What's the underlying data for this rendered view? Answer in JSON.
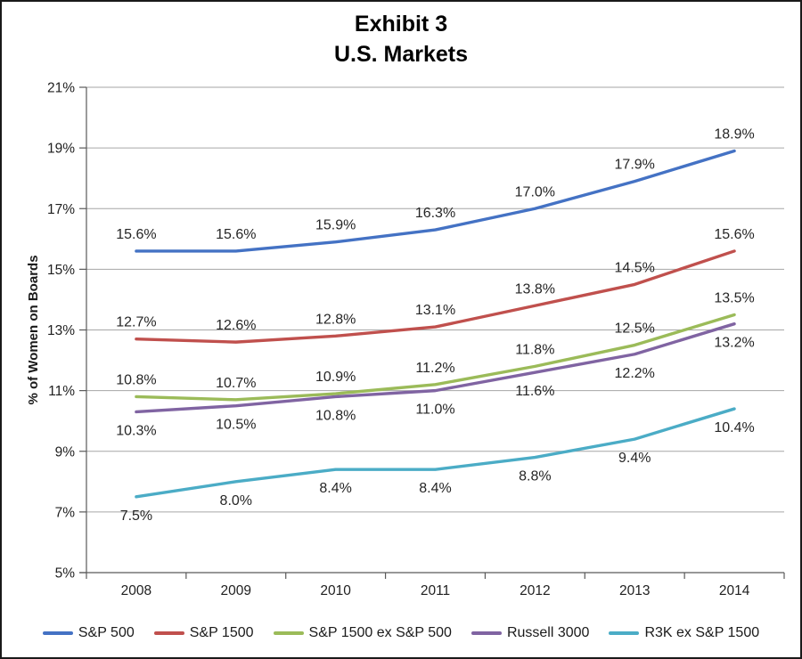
{
  "chart_data": {
    "type": "line",
    "title": "Exhibit 3",
    "subtitle": "U.S. Markets",
    "ylabel": "% of Women on Boards",
    "ylim": [
      5,
      21
    ],
    "ytick_step": 2,
    "ytick_labels": [
      "5%",
      "7%",
      "9%",
      "11%",
      "13%",
      "15%",
      "17%",
      "19%",
      "21%"
    ],
    "categories": [
      "2008",
      "2009",
      "2010",
      "2011",
      "2012",
      "2013",
      "2014"
    ],
    "series": [
      {
        "name": "S&P 500",
        "color": "#4472C4",
        "values": [
          15.6,
          15.6,
          15.9,
          16.3,
          17.0,
          17.9,
          18.9
        ],
        "label_position": "above"
      },
      {
        "name": "S&P 1500",
        "color": "#C0504D",
        "values": [
          12.7,
          12.6,
          12.8,
          13.1,
          13.8,
          14.5,
          15.6
        ],
        "label_position": "above"
      },
      {
        "name": "S&P 1500 ex S&P 500",
        "color": "#9BBB59",
        "values": [
          10.8,
          10.7,
          10.9,
          11.2,
          11.8,
          12.5,
          13.5
        ],
        "label_position": "above"
      },
      {
        "name": "Russell 3000",
        "color": "#8064A2",
        "values": [
          10.3,
          10.5,
          10.8,
          11.0,
          11.6,
          12.2,
          13.2
        ],
        "label_position": "below"
      },
      {
        "name": "R3K ex S&P 1500",
        "color": "#4BACC6",
        "values": [
          7.5,
          8.0,
          8.4,
          8.4,
          8.8,
          9.4,
          10.4
        ],
        "label_position": "below"
      }
    ],
    "value_decimals": 1,
    "value_suffix": "%",
    "legend_position": "bottom",
    "grid": "horizontal",
    "gridline_color": "#A6A6A6",
    "axis_color": "#595959",
    "tick_label_color": "#1f1f1f",
    "data_label_color": "#262626"
  }
}
